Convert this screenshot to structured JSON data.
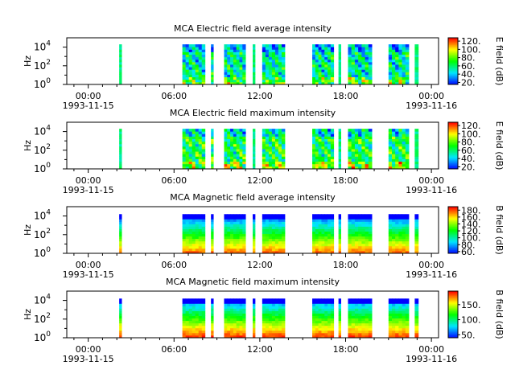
{
  "figure": {
    "panels": [
      {
        "title": "MCA  Electric field average intensity",
        "ylabel": "Hz",
        "cb_label": "E field (dB)"
      },
      {
        "title": "MCA  Electric field maximum intensity",
        "ylabel": "Hz",
        "cb_label": "E field (dB)"
      },
      {
        "title": "MCA  Magnetic field average intensity",
        "ylabel": "Hz",
        "cb_label": "B field (dB)"
      },
      {
        "title": "MCA  Magnetic field maximum intensity",
        "ylabel": "Hz",
        "cb_label": "B field (dB)"
      }
    ],
    "xticks": [
      {
        "label": "00:00",
        "date": "1993-11-15"
      },
      {
        "label": "06:00",
        "date": ""
      },
      {
        "label": "12:00",
        "date": ""
      },
      {
        "label": "18:00",
        "date": ""
      },
      {
        "label": "00:00",
        "date": "1993-11-16"
      }
    ]
  },
  "chart_data": [
    {
      "type": "heatmap",
      "title": "MCA  Electric field average intensity",
      "ylabel": "Hz",
      "yscale": "log",
      "ylim": [
        1,
        100000
      ],
      "yticks": [
        "10^0",
        "10^2",
        "10^4"
      ],
      "xlim": [
        "1993-11-14 22:30",
        "1993-11-16 00:30"
      ],
      "data_intervals_utc": [
        [
          "02:10",
          "02:20"
        ],
        [
          "06:35",
          "08:10"
        ],
        [
          "08:35",
          "08:45"
        ],
        [
          "09:30",
          "11:00"
        ],
        [
          "11:30",
          "11:40"
        ],
        [
          "12:10",
          "13:45"
        ],
        [
          "15:40",
          "17:10"
        ],
        [
          "17:30",
          "17:40"
        ],
        [
          "18:10",
          "19:50"
        ],
        [
          "21:00",
          "22:25"
        ],
        [
          "22:50",
          "23:05"
        ]
      ],
      "colorbar": {
        "label": "E field (dB)",
        "ticks": [
          "20.",
          "40.",
          "60.",
          "80.",
          "100.",
          "120."
        ],
        "range": [
          15,
          128
        ]
      }
    },
    {
      "type": "heatmap",
      "title": "MCA  Electric field maximum intensity",
      "ylabel": "Hz",
      "yscale": "log",
      "ylim": [
        1,
        100000
      ],
      "yticks": [
        "10^0",
        "10^2",
        "10^4"
      ],
      "xlim": [
        "1993-11-14 22:30",
        "1993-11-16 00:30"
      ],
      "data_intervals_utc": [
        [
          "02:10",
          "02:20"
        ],
        [
          "06:35",
          "08:10"
        ],
        [
          "08:35",
          "08:45"
        ],
        [
          "09:30",
          "11:00"
        ],
        [
          "11:30",
          "11:40"
        ],
        [
          "12:10",
          "13:45"
        ],
        [
          "15:40",
          "17:10"
        ],
        [
          "17:30",
          "17:40"
        ],
        [
          "18:10",
          "19:50"
        ],
        [
          "21:00",
          "22:25"
        ],
        [
          "22:50",
          "23:05"
        ]
      ],
      "colorbar": {
        "label": "E field (dB)",
        "ticks": [
          "20.",
          "40.",
          "60.",
          "80.",
          "100.",
          "120."
        ],
        "range": [
          15,
          128
        ]
      }
    },
    {
      "type": "heatmap",
      "title": "MCA  Magnetic field average intensity",
      "ylabel": "Hz",
      "yscale": "log",
      "ylim": [
        1,
        100000
      ],
      "yticks": [
        "10^0",
        "10^2",
        "10^4"
      ],
      "xlim": [
        "1993-11-14 22:30",
        "1993-11-16 00:30"
      ],
      "data_intervals_utc": [
        [
          "02:10",
          "02:20"
        ],
        [
          "06:35",
          "08:10"
        ],
        [
          "08:35",
          "08:45"
        ],
        [
          "09:30",
          "11:00"
        ],
        [
          "11:30",
          "11:40"
        ],
        [
          "12:10",
          "13:45"
        ],
        [
          "15:40",
          "17:10"
        ],
        [
          "17:30",
          "17:40"
        ],
        [
          "18:10",
          "19:50"
        ],
        [
          "21:00",
          "22:25"
        ],
        [
          "22:50",
          "23:05"
        ]
      ],
      "colorbar": {
        "label": "B field (dB)",
        "ticks": [
          "60.",
          "80.",
          "100.",
          "120.",
          "140.",
          "160.",
          "180."
        ],
        "range": [
          55,
          190
        ]
      }
    },
    {
      "type": "heatmap",
      "title": "MCA  Magnetic field maximum intensity",
      "ylabel": "Hz",
      "yscale": "log",
      "ylim": [
        1,
        100000
      ],
      "yticks": [
        "10^0",
        "10^2",
        "10^4"
      ],
      "xlim": [
        "1993-11-14 22:30",
        "1993-11-16 00:30"
      ],
      "data_intervals_utc": [
        [
          "02:10",
          "02:20"
        ],
        [
          "06:35",
          "08:10"
        ],
        [
          "08:35",
          "08:45"
        ],
        [
          "09:30",
          "11:00"
        ],
        [
          "11:30",
          "11:40"
        ],
        [
          "12:10",
          "13:45"
        ],
        [
          "15:40",
          "17:10"
        ],
        [
          "17:30",
          "17:40"
        ],
        [
          "18:10",
          "19:50"
        ],
        [
          "21:00",
          "22:25"
        ],
        [
          "22:50",
          "23:05"
        ]
      ],
      "colorbar": {
        "label": "B field (dB)",
        "ticks": [
          "50.",
          "100.",
          "150."
        ],
        "range": [
          40,
          195
        ]
      }
    }
  ]
}
